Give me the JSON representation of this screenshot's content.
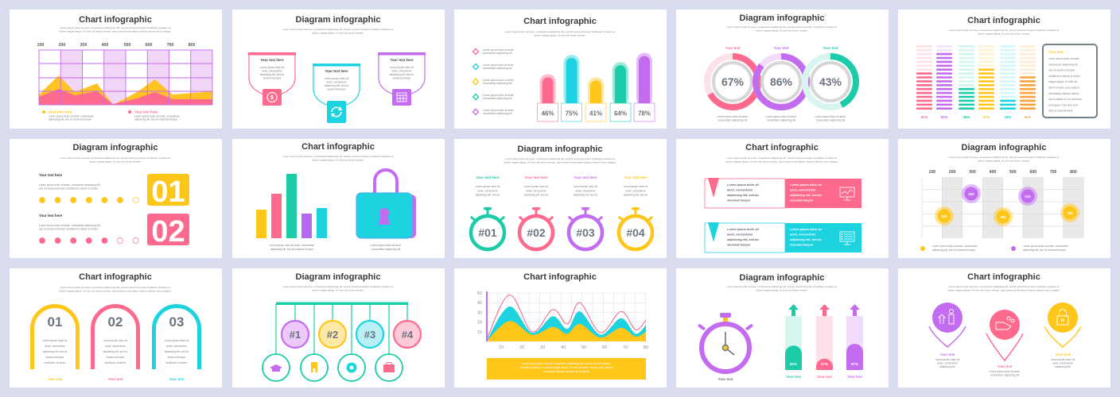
{
  "colors": {
    "pink": "#fd6a8e",
    "cyan": "#1ed3e0",
    "yellow": "#ffc61a",
    "green": "#1ccca8",
    "purple": "#c46cf0",
    "orange": "#f9a13b",
    "grey": "#6b7480"
  },
  "slides": [
    {
      "title": "Chart infographic",
      "desc": [
        "Lorem ipsum dolor sit amet, consectetur adipiscing elit, sed do eiusmod tempor incididunt ut labore et",
        "dolore magna aliqua. Ut enim ad minim veniam, quis nostrud exercitation ullamco laboris nisi ut aliquip."
      ],
      "x_labels": [
        "100",
        "200",
        "300",
        "400",
        "500",
        "600",
        "700",
        "800"
      ],
      "legend": [
        {
          "label": "Your text here",
          "text": [
            "Lorem ipsum dolor sit amet, consectetur",
            "adipiscing elit, sed do eiusmod tempor"
          ]
        },
        {
          "label": "Your text here",
          "text": [
            "Lorem ipsum dolor sit amet, consectetur",
            "adipiscing elit, sed do eiusmod tempor"
          ]
        }
      ]
    },
    {
      "title": "Diagram infographic",
      "desc": [
        "Lorem ipsum dolor sit amet, consectetur adipiscing elit, sed do eiusmod tempor incididunt ut labore et",
        "dolore magna aliqua. Ut enim ad minim veniam."
      ],
      "cards": [
        {
          "label": "Your text here",
          "text": [
            "Lorem ipsum dolor sit",
            "amet, consectetur",
            "adipiscing elit, sed do",
            "eiusmod tempor"
          ],
          "icon": "dollar-icon"
        },
        {
          "label": "Your text here",
          "text": [
            "Lorem ipsum dolor sit",
            "amet, consectetur",
            "adipiscing elit, sed do",
            "eiusmod tempor"
          ],
          "icon": "refresh-icon"
        },
        {
          "label": "Your text here",
          "text": [
            "Lorem ipsum dolor sit",
            "amet, consectetur",
            "adipiscing elit, sed do",
            "eiusmod tempor"
          ],
          "icon": "calendar-icon"
        }
      ]
    },
    {
      "title": "Chart infographic",
      "desc": [
        "Lorem ipsum dolor sit amet, consectetur adipiscing elit, sed do eiusmod tempor incididunt ut labore et",
        "dolore magna aliqua. Ut enim ad minim veniam."
      ],
      "legend": [
        [
          "Lorem ipsum dolor sit amet,",
          "consectetur adipiscing elit"
        ],
        [
          "Lorem ipsum dolor sit amet,",
          "consectetur adipiscing elit"
        ],
        [
          "Lorem ipsum dolor sit amet,",
          "consectetur adipiscing elit"
        ],
        [
          "Lorem ipsum dolor sit amet,",
          "consectetur adipiscing elit"
        ],
        [
          "Lorem ipsum dolor sit amet,",
          "consectetur adipiscing elit"
        ]
      ],
      "bars": [
        {
          "label": "46%",
          "value": 46
        },
        {
          "label": "75%",
          "value": 75
        },
        {
          "label": "41%",
          "value": 41
        },
        {
          "label": "64%",
          "value": 64
        },
        {
          "label": "78%",
          "value": 78
        }
      ]
    },
    {
      "title": "Diagram infographic",
      "desc": [
        "Lorem ipsum dolor sit amet, consectetur adipiscing elit, sed do eiusmod tempor incididunt ut labore et",
        "dolore magna aliqua. Ut enim ad minim veniam."
      ],
      "donuts": [
        {
          "label": "Your text",
          "pct": "67%",
          "value": 67,
          "text": [
            "Lorem ipsum dolor sit amet,",
            "consectetur adipiscing elit"
          ]
        },
        {
          "label": "Your text",
          "pct": "86%",
          "value": 86,
          "text": [
            "Lorem ipsum dolor sit amet,",
            "consectetur adipiscing elit"
          ]
        },
        {
          "label": "Your text",
          "pct": "43%",
          "value": 43,
          "text": [
            "Lorem ipsum dolor sit amet,",
            "consectetur adipiscing elit"
          ]
        }
      ]
    },
    {
      "title": "Chart infographic",
      "desc": [
        "Lorem ipsum dolor sit amet, consectetur adipiscing elit, sed do eiusmod tempor incididunt ut labore et",
        "dolore magna aliqua. Ut enim ad minim veniam."
      ],
      "columns": [
        {
          "pct": "61%",
          "value": 61
        },
        {
          "pct": "87%",
          "value": 87
        },
        {
          "pct": "36%",
          "value": 36
        },
        {
          "pct": "67%",
          "value": 67
        },
        {
          "pct": "18%",
          "value": 18
        },
        {
          "pct": "54%",
          "value": 54
        }
      ],
      "box": {
        "label": "Your text",
        "text": [
          "Lorem ipsum dolor sit amet,",
          "consectetur adipiscing elit,",
          "sed do eiusmod tempor",
          "incididunt ut labore et dolore",
          "magna aliqua. Ut enim ad",
          "minim veniam, quis nostrud",
          "exercitation ullamco laboris",
          "nisi ut aliquip ex ea commodo",
          "consequat. Duis aute irure",
          "dolor in reprehenderit"
        ]
      }
    },
    {
      "title": "Diagram infographic",
      "desc": [
        "Lorem ipsum dolor sit amet, consectetur adipiscing elit, sed do eiusmod tempor incididunt ut labore et",
        "dolore magna aliqua. Ut enim ad minim veniam."
      ],
      "items": [
        {
          "label": "Your text here",
          "text": [
            "Lorem ipsum dolor sit amet, consectetur adipiscing elit,",
            "sed do eiusmod tempor incididunt ut labore et dolore"
          ],
          "number": "01",
          "filled": 6,
          "total": 7
        },
        {
          "label": "Your text here",
          "text": [
            "Lorem ipsum dolor sit amet, consectetur adipiscing elit,",
            "sed do eiusmod tempor incididunt ut labore et dolore"
          ],
          "number": "02",
          "filled": 5,
          "total": 7
        }
      ]
    },
    {
      "title": "Chart infographic",
      "desc": [
        "Lorem ipsum dolor sit amet, consectetur adipiscing elit, sed do eiusmod tempor incididunt ut labore et",
        "dolore magna aliqua. Ut enim ad minim veniam."
      ],
      "captions": [
        [
          "Lorem ipsum dolor sit amet, consectetur",
          "adipiscing elit, sed do eiusmod tempor"
        ],
        [
          "Lorem ipsum dolor sit amet,",
          "consectetur adipiscing elit"
        ]
      ]
    },
    {
      "title": "Diagram infographic",
      "desc": [
        "Lorem ipsum dolor sit amet, consectetur adipiscing elit, sed do eiusmod tempor incididunt ut labore et",
        "dolore magna aliqua. Ut enim ad minim veniam, quis nostrud exercitation ullamco laboris nisi ut aliquip."
      ],
      "timers": [
        {
          "label": "Your text here",
          "number": "#01",
          "text": [
            "Lorem ipsum dolor sit",
            "amet, consectetur",
            "adipiscing elit, sed do"
          ]
        },
        {
          "label": "Your text here",
          "number": "#02",
          "text": [
            "Lorem ipsum dolor sit",
            "amet, consectetur",
            "adipiscing elit, sed do"
          ]
        },
        {
          "label": "Your text here",
          "number": "#03",
          "text": [
            "Lorem ipsum dolor sit",
            "amet, consectetur",
            "adipiscing elit, sed do"
          ]
        },
        {
          "label": "Your text here",
          "number": "#04",
          "text": [
            "Lorem ipsum dolor sit",
            "amet, consectetur",
            "adipiscing elit, sed do"
          ]
        }
      ]
    },
    {
      "title": "Chart infographic",
      "desc": [
        "Lorem ipsum dolor sit amet, consectetur adipiscing elit, sed do eiusmod tempor incididunt ut labore et",
        "dolore magna aliqua. Ut enim ad minim veniam, quis nostrud exercitation ullamco laboris nisi ut aliquip."
      ],
      "banners": [
        {
          "left": [
            "Lorem ipsum dolor sit",
            "amet, consectetur",
            "adipiscing elit, sed do",
            "eiusmod tempor"
          ],
          "right": [
            "Lorem ipsum dolor sit",
            "amet, consectetur",
            "adipiscing elit, sed do",
            "eiusmod tempor"
          ],
          "icon": "monitor-chart-icon"
        },
        {
          "left": [
            "Lorem ipsum dolor sit",
            "amet, consectetur",
            "adipiscing elit, sed do",
            "eiusmod tempor"
          ],
          "right": [
            "Lorem ipsum dolor sit",
            "amet, consectetur",
            "adipiscing elit, sed do",
            "eiusmod tempor"
          ],
          "icon": "monitor-list-icon"
        }
      ]
    },
    {
      "title": "Diagram infographic",
      "desc": [
        "Lorem ipsum dolor sit amet, consectetur adipiscing elit, sed do eiusmod tempor incididunt ut labore et",
        "dolore magna aliqua. Ut enim ad minim veniam."
      ],
      "x_labels": [
        "100",
        "200",
        "300",
        "400",
        "500",
        "600",
        "700",
        "800"
      ],
      "bubbles": [
        "150",
        "340",
        "460",
        "510",
        "780"
      ],
      "legend": [
        [
          "Lorem ipsum dolor sit amet, consectetur",
          "adipiscing elit, sed do eiusmod tempor"
        ],
        [
          "Lorem ipsum dolor sit amet, consectetur",
          "adipiscing elit, sed do eiusmod tempor"
        ]
      ]
    },
    {
      "title": "Chart infographic",
      "desc": [
        "Lorem ipsum dolor sit amet, consectetur adipiscing elit, sed do eiusmod tempor incididunt ut labore et",
        "dolore magna aliqua. Ut enim ad minim veniam, quis nostrud exercitation ullamco laboris nisi ut aliquip."
      ],
      "arches": [
        {
          "number": "01",
          "label": "Your text",
          "text": [
            "Lorem ipsum dolor sit",
            "amet, consectetur",
            "adipiscing elit, sed do",
            "eiusmod tempor",
            "incididunt ut labore"
          ]
        },
        {
          "number": "02",
          "label": "Your text",
          "text": [
            "Lorem ipsum dolor sit",
            "amet, consectetur",
            "adipiscing elit, sed do",
            "eiusmod tempor",
            "incididunt ut labore"
          ]
        },
        {
          "number": "03",
          "label": "Your text",
          "text": [
            "Lorem ipsum dolor sit",
            "amet, consectetur",
            "adipiscing elit, sed do",
            "eiusmod tempor",
            "incididunt ut labore"
          ]
        }
      ]
    },
    {
      "title": "Diagram infographic",
      "desc": [
        "Lorem ipsum dolor sit amet, consectetur adipiscing elit, sed do eiusmod tempor incididunt ut labore et",
        "dolore magna aliqua. Ut enim ad minim veniam."
      ],
      "nodes": [
        "#1",
        "#2",
        "#3",
        "#4"
      ],
      "icons": [
        "graduation-cap-icon",
        "building-icon",
        "gear-icon",
        "toolbox-icon"
      ]
    },
    {
      "title": "Chart infographic",
      "box_text": [
        "Lorem ipsum dolor sit amet, consectetur adipiscing elit, sed do eiusmod tempor",
        "incididunt ut labore et dolore magna aliqua. Ut enim ad minim veniam, quis nostrud",
        "exercitation ullamco laboris nisi ut aliquip."
      ]
    },
    {
      "title": "Diagram infographic",
      "desc": [
        "Lorem ipsum dolor sit amet, consectetur adipiscing elit, sed do eiusmod tempor incididunt ut labore et",
        "dolore magna aliqua. Ut enim ad minim veniam."
      ],
      "timer_label": "Your text",
      "bars": [
        {
          "pct": "81%",
          "value": 81,
          "label": "Your text"
        },
        {
          "pct": "37%",
          "value": 37,
          "label": "Your text"
        },
        {
          "pct": "87%",
          "value": 87,
          "label": "Your text"
        }
      ]
    },
    {
      "title": "Chart infographic",
      "desc": [
        "Lorem ipsum dolor sit amet, consectetur adipiscing elit, sed do eiusmod tempor incididunt ut labore et",
        "dolore magna aliqua. Ut enim ad minim veniam, quis nostrud exercitation ullamco laboris nisi ut aliquip."
      ],
      "pins": [
        {
          "label": "Your text",
          "icon": "growth-people-icon",
          "text": [
            "Lorem ipsum dolor sit",
            "amet, consectetur",
            "adipiscing elit"
          ]
        },
        {
          "label": "Your text",
          "icon": "hand-coins-icon",
          "text": [
            "Lorem ipsum dolor sit amet,",
            "consectetur adipiscing elit"
          ]
        },
        {
          "label": "Your text",
          "icon": "padlock-icon",
          "text": [
            "Lorem ipsum dolor sit",
            "amet, consectetur",
            "adipiscing elit"
          ]
        }
      ]
    }
  ],
  "chart_data": [
    {
      "type": "area",
      "title": "Chart infographic",
      "x": [
        3,
        14,
        25,
        35,
        42,
        48,
        58,
        68,
        75,
        80
      ],
      "x_ticks": [
        "10",
        "20",
        "30",
        "40",
        "50",
        "60",
        "70",
        "80"
      ],
      "y_ticks": [
        "50",
        "40",
        "30",
        "20",
        "10"
      ],
      "xlim": [
        0,
        80
      ],
      "ylim": [
        0,
        50
      ],
      "grid": true,
      "series": [
        {
          "name": "line",
          "values": [
            2,
            48,
            10,
            33,
            18,
            40,
            9,
            31,
            12,
            22
          ]
        },
        {
          "name": "cyan",
          "values": [
            1,
            36,
            9,
            26,
            13,
            31,
            7,
            24,
            8,
            17
          ]
        },
        {
          "name": "yellow",
          "values": [
            0.5,
            21,
            7,
            15,
            8,
            18,
            4,
            14,
            5,
            10
          ]
        }
      ]
    }
  ]
}
